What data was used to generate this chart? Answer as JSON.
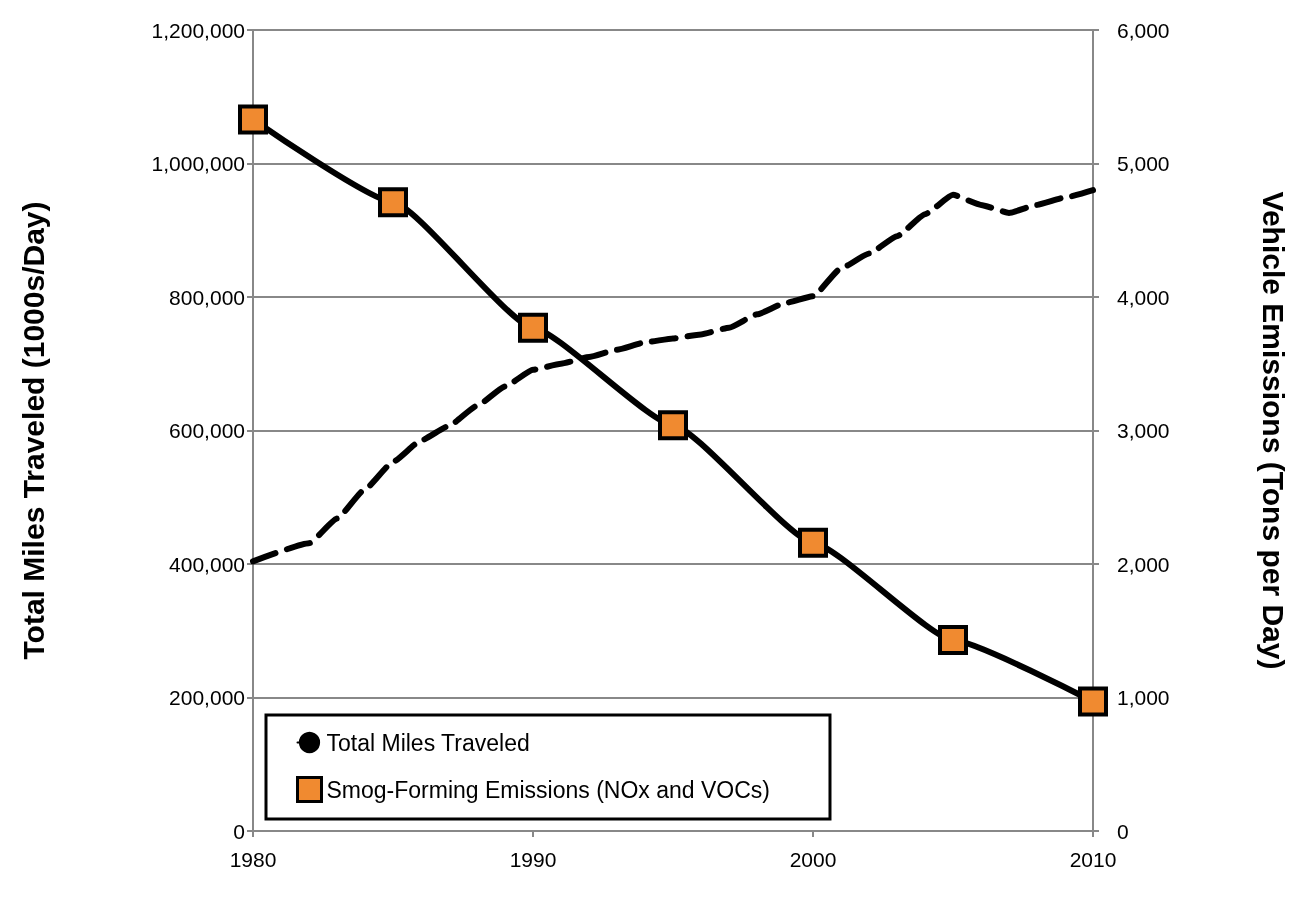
{
  "chart_data": {
    "type": "line",
    "ylabel": "Total Miles Traveled (1000s/Day)",
    "y2label": "Vehicle Emissions (Tons per Day)",
    "xlim": [
      1980,
      2010
    ],
    "xticks": [
      1980,
      1990,
      2000,
      2010
    ],
    "ylim": [
      0,
      1200000
    ],
    "yticks": [
      0,
      {
        "value": 200000,
        "label": "200,000"
      },
      {
        "value": 400000,
        "label": "400,000"
      },
      {
        "value": 600000,
        "label": "600,000"
      },
      {
        "value": 800000,
        "label": "800,000"
      },
      {
        "value": 1000000,
        "label": "1,000,000"
      },
      {
        "value": 1200000,
        "label": "1,200,000"
      }
    ],
    "y2lim": [
      0,
      6000
    ],
    "y2ticks": [
      0,
      {
        "value": 1000,
        "label": "1,000"
      },
      {
        "value": 2000,
        "label": "2,000"
      },
      {
        "value": 3000,
        "label": "3,000"
      },
      {
        "value": 4000,
        "label": "4,000"
      },
      {
        "value": 5000,
        "label": "5,000"
      },
      {
        "value": 6000,
        "label": "6,000"
      }
    ],
    "grid": "y",
    "legend": "bottom left",
    "series": [
      {
        "name": "Total Miles Traveled",
        "color": "#000000",
        "line_style": "dashed",
        "marker": "none",
        "x": [
          1980,
          1982,
          1983,
          1984,
          1985,
          1986,
          1987,
          1988,
          1989,
          1990,
          1991,
          1992,
          1993,
          1994,
          1995,
          1996,
          1997,
          1998,
          1999,
          2000,
          2001,
          2002,
          2003,
          2004,
          2005,
          2006,
          2007,
          2008,
          2009,
          2010
        ],
        "values": [
          404000,
          431000,
          468000,
          512000,
          553000,
          585000,
          607000,
          637000,
          666000,
          691000,
          700000,
          710000,
          721000,
          732000,
          738000,
          744000,
          754000,
          774000,
          791000,
          801000,
          843000,
          865000,
          891000,
          924000,
          953000,
          938000,
          926000,
          938000,
          949000,
          960000
        ]
      },
      {
        "name": "Smog-Forming Emissions (NOx and VOCs)",
        "color": "#f08a30",
        "axis": "y2",
        "line_style": "solid",
        "marker": "square",
        "x": [
          1980,
          1985,
          1990,
          1995,
          2000,
          2005,
          2010
        ],
        "values": [
          5330,
          4710,
          3770,
          3040,
          2160,
          1430,
          970
        ]
      }
    ]
  }
}
